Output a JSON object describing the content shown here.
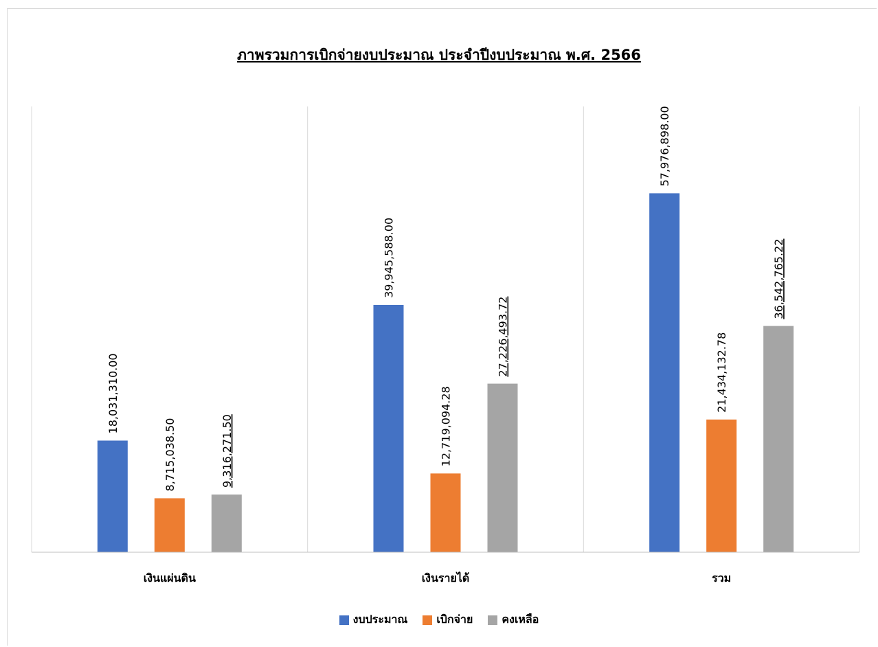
{
  "chart_data": {
    "type": "bar",
    "title": "ภาพรวมการเบิกจ่ายงบประมาณ  ประจำปีงบประมาณ พ.ศ. 2566",
    "categories": [
      "เงินแผ่นดิน",
      "เงินรายได้",
      "รวม"
    ],
    "series": [
      {
        "name": "งบประมาณ",
        "color": "#4472c4",
        "values": [
          18031310.0,
          39945588.0,
          57976898.0
        ],
        "labels": [
          "18,031,310.00",
          "39,945,588.00",
          "57,976,898.00"
        ],
        "underline": false
      },
      {
        "name": "เบิกจ่าย",
        "color": "#ed7d31",
        "values": [
          8715038.5,
          12719094.28,
          21434132.78
        ],
        "labels": [
          "8,715,038.50",
          "12,719,094.28",
          "21,434,132.78"
        ],
        "underline": false
      },
      {
        "name": "คงเหลือ",
        "color": "#a5a5a5",
        "values": [
          9316271.5,
          27226493.72,
          36542765.22
        ],
        "labels": [
          "9,316,271.50",
          "27,226,493.72",
          "36,542,765.22"
        ],
        "underline": true
      }
    ],
    "xlabel": "",
    "ylabel": "",
    "ylim": [
      0,
      72000000
    ],
    "grid": false,
    "legend_position": "bottom"
  }
}
